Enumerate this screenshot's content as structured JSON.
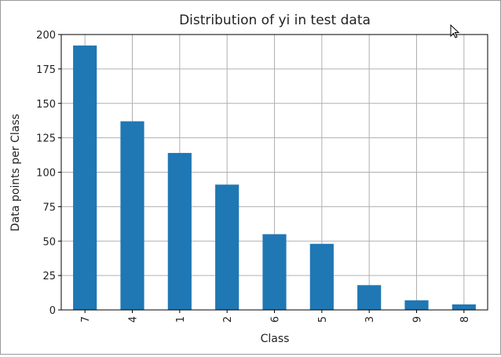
{
  "chart_data": {
    "type": "bar",
    "title": "Distribution of yi in test data",
    "xlabel": "Class",
    "ylabel": "Data points per Class",
    "categories": [
      "7",
      "4",
      "1",
      "2",
      "6",
      "5",
      "3",
      "9",
      "8"
    ],
    "values": [
      192,
      137,
      114,
      91,
      55,
      48,
      18,
      7,
      4
    ],
    "ylim": [
      0,
      200
    ],
    "yticks": [
      0,
      25,
      50,
      75,
      100,
      125,
      150,
      175,
      200
    ],
    "grid": true,
    "legend": "none",
    "bar_color": "#1f77b4"
  },
  "cursor_icon": "mouse-pointer-icon"
}
